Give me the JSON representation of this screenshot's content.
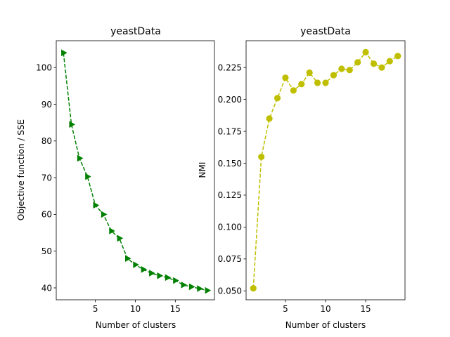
{
  "chart_data": [
    {
      "type": "line",
      "title": "yeastData",
      "xlabel": "Number of clusters",
      "ylabel": "Objective function / SSE",
      "xlim": [
        0.1,
        19.9
      ],
      "ylim": [
        36.75,
        107.3
      ],
      "xticks": [
        5,
        10,
        15
      ],
      "yticks": [
        40,
        50,
        60,
        70,
        80,
        90,
        100
      ],
      "color": "#008000",
      "linestyle": "dashed",
      "marker": "triangle-right",
      "grid": false,
      "series": [
        {
          "x": [
            1,
            2,
            3,
            4,
            5,
            6,
            7,
            8,
            9,
            10,
            11,
            12,
            13,
            14,
            15,
            16,
            17,
            18,
            19
          ],
          "y": [
            104.0,
            84.5,
            75.3,
            70.3,
            62.5,
            60.0,
            55.5,
            53.5,
            48.0,
            46.3,
            45.0,
            44.0,
            43.3,
            42.8,
            42.0,
            40.8,
            40.3,
            39.8,
            39.3
          ]
        }
      ]
    },
    {
      "type": "line",
      "title": "yeastData",
      "xlabel": "Number of clusters",
      "ylabel": "NMI",
      "xlim": [
        0.1,
        19.9
      ],
      "ylim": [
        0.043,
        0.246
      ],
      "xticks": [
        5,
        10,
        15
      ],
      "yticks": [
        0.05,
        0.075,
        0.1,
        0.125,
        0.15,
        0.175,
        0.2,
        0.225
      ],
      "ytick_labels": [
        "0.050",
        "0.075",
        "0.100",
        "0.125",
        "0.150",
        "0.175",
        "0.200",
        "0.225"
      ],
      "color": "#bfbf00",
      "linestyle": "dashed",
      "marker": "circle",
      "grid": false,
      "series": [
        {
          "x": [
            1,
            2,
            3,
            4,
            5,
            6,
            7,
            8,
            9,
            10,
            11,
            12,
            13,
            14,
            15,
            16,
            17,
            18,
            19
          ],
          "y": [
            0.052,
            0.155,
            0.185,
            0.201,
            0.217,
            0.207,
            0.212,
            0.221,
            0.213,
            0.213,
            0.219,
            0.224,
            0.223,
            0.229,
            0.237,
            0.228,
            0.225,
            0.23,
            0.234
          ]
        }
      ]
    }
  ]
}
